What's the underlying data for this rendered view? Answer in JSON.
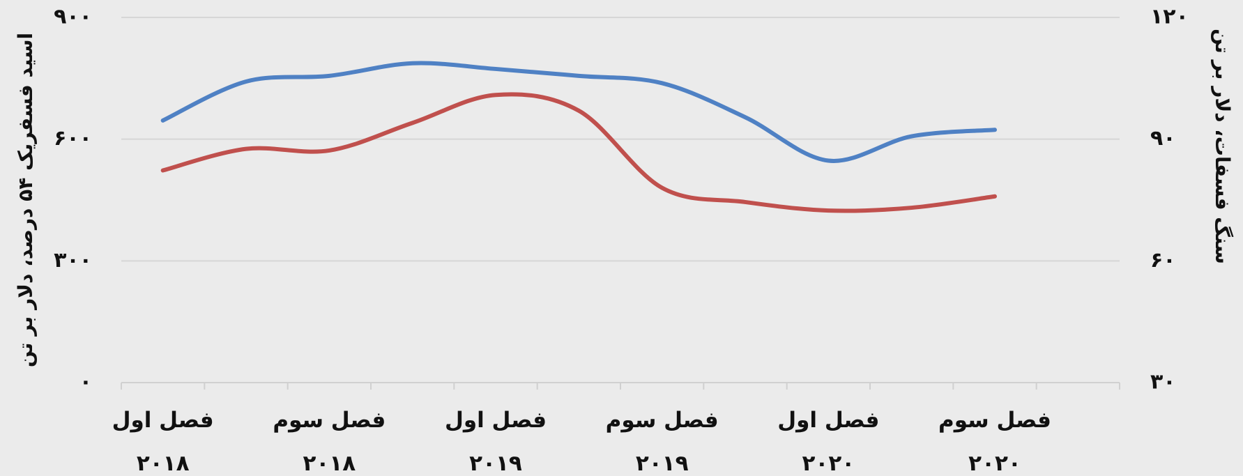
{
  "chart_data": {
    "type": "line",
    "y_label": "اسید فسفریک ۵۴ درصد، دلار بر تن",
    "y2_label": "سنگ فسفات، دلار بر تن",
    "categories": [
      "فصل اول ۲۰۱۸",
      null,
      "فصل سوم ۲۰۱۸",
      null,
      "فصل اول ۲۰۱۹",
      null,
      "فصل سوم ۲۰۱۹",
      null,
      "فصل اول ۲۰۲۰",
      null,
      "فصل سوم ۲۰۲۰",
      null
    ],
    "series": [
      {
        "color": "#4f81c4",
        "axis": "y",
        "values": [
          646,
          742,
          756,
          787,
          773,
          756,
          738,
          654,
          547,
          607,
          623,
          null
        ]
      },
      {
        "color": "#c0504d",
        "axis": "y2",
        "values": [
          82.3,
          87.6,
          87.2,
          94.0,
          100.9,
          97.0,
          78.0,
          74.5,
          72.4,
          73.1,
          75.9,
          null
        ]
      }
    ],
    "ylim": [
      0,
      900
    ],
    "yticks": [
      {
        "value": 0,
        "label": "۰"
      },
      {
        "value": 300,
        "label": "۳۰۰"
      },
      {
        "value": 600,
        "label": "۶۰۰"
      },
      {
        "value": 900,
        "label": "۹۰۰"
      }
    ],
    "y2lim": [
      30,
      120
    ],
    "y2ticks": [
      {
        "value": 30,
        "label": "۳۰"
      },
      {
        "value": 60,
        "label": "۶۰"
      },
      {
        "value": 90,
        "label": "۹۰"
      },
      {
        "value": 120,
        "label": "۱۲۰"
      }
    ],
    "grid": true
  }
}
